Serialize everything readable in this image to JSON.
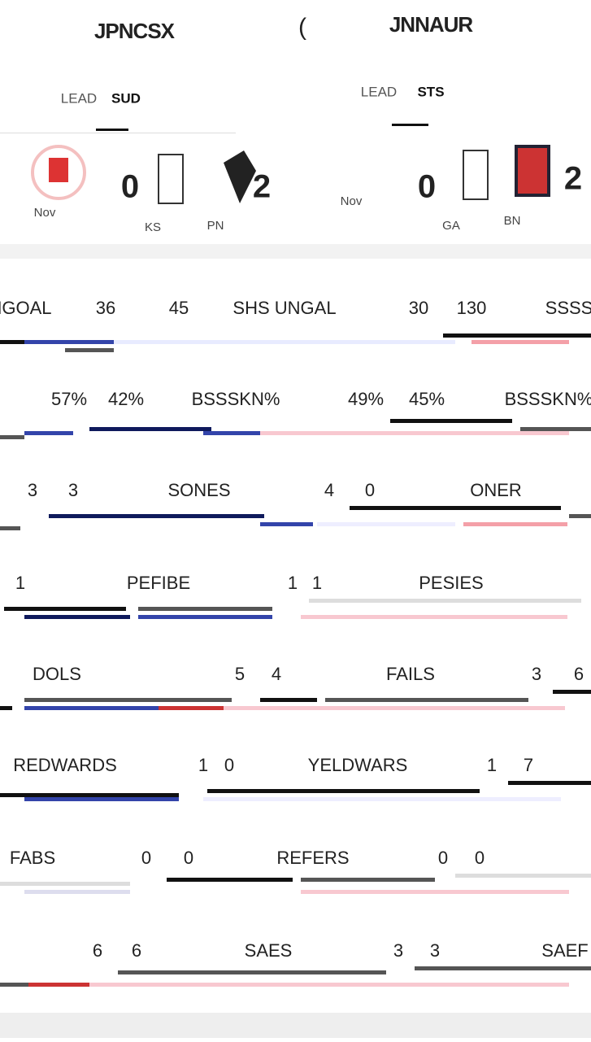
{
  "header": {
    "left_title": "JPNCSX",
    "right_title": "JNNAUR"
  },
  "tabs": {
    "left": [
      "LEAD",
      "SUD"
    ],
    "right": [
      "LEAD",
      "STS"
    ]
  },
  "matches": [
    {
      "note": "Nov",
      "home_score": "0",
      "away_score": "2",
      "home": "KS",
      "away": "PN"
    },
    {
      "note": "Nov",
      "home_score": "0",
      "away_score": "2",
      "home": "GA",
      "away": "BN"
    }
  ],
  "stats": [
    {
      "items": [
        "NGOAL",
        "36",
        "45",
        "SHS UNGAL",
        "30",
        "130",
        "SSSS"
      ]
    },
    {
      "items": [
        "57%",
        "42%",
        "BSSSKN%",
        "49%",
        "45%",
        "BSSSKN%"
      ]
    },
    {
      "items": [
        "3",
        "3",
        "SONES",
        "4",
        "0",
        "ONER"
      ]
    },
    {
      "items": [
        "1",
        "PEFIBE",
        "1",
        "1",
        "PESIES"
      ]
    },
    {
      "items": [
        "DOLS",
        "5",
        "4",
        "FAILS",
        "3",
        "6"
      ]
    },
    {
      "items": [
        "REDWARDS",
        "1",
        "0",
        "YELDWARS",
        "1",
        "7"
      ]
    },
    {
      "items": [
        "FABS",
        "0",
        "0",
        "REFERS",
        "0",
        "0"
      ]
    },
    {
      "items": [
        "6",
        "6",
        "SAES",
        "3",
        "3",
        "SAEF"
      ]
    }
  ]
}
